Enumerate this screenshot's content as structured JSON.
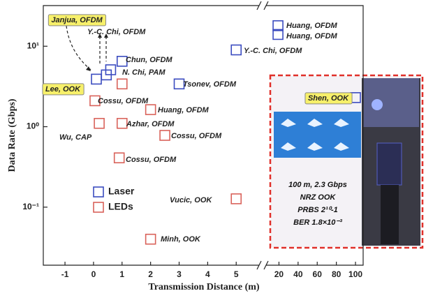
{
  "chart_data": {
    "type": "scatter",
    "x_label": "Transmission Distance (m)",
    "y_label": "Data Rate (Gbps)",
    "xlim": [
      -1.76,
      108
    ],
    "xbreak": [
      5.9,
      8
    ],
    "xticks": [
      -1,
      0,
      1,
      2,
      3,
      4,
      5,
      20,
      40,
      60,
      80,
      100
    ],
    "ylim": [
      0.019,
      32
    ],
    "log_y": true,
    "yticks": [
      {
        "value": 0.1,
        "label": "10⁻¹"
      },
      {
        "value": 1,
        "label": "10⁰"
      },
      {
        "value": 10,
        "label": "10¹"
      }
    ],
    "legend": "lower left",
    "series": [
      {
        "name": "Laser",
        "color": "#3b4cc0",
        "x": [
          0.1,
          0.45,
          0.6,
          1,
          3,
          5,
          19,
          19,
          100
        ],
        "values": [
          3.9,
          4.4,
          5.1,
          6.5,
          3.4,
          9,
          18,
          14,
          2.3
        ],
        "point_labels": [
          "Lee, OOK",
          "Janjua, OFDM",
          "Y.-C. Chi, OFDM",
          "Chun, OFDM",
          "Tsonev, OFDM",
          "Y.-C. Chi, OFDM",
          "Huang, OFDM",
          "Huang, OFDM",
          "Shen, OOK"
        ],
        "highlight": [
          true,
          true,
          false,
          false,
          false,
          false,
          false,
          false,
          true
        ]
      },
      {
        "name": "LEDs",
        "color": "#d9625a",
        "x": [
          0.05,
          1,
          2,
          0.2,
          1,
          2.5,
          0.9,
          5,
          2
        ],
        "values": [
          2.1,
          3.4,
          1.63,
          1.1,
          1.1,
          0.78,
          0.41,
          0.127,
          0.04
        ],
        "point_labels": [
          "Cossu, OFDM",
          "N. Chi, PAM",
          "Huang, OFDM",
          "Wu, CAP",
          "Azhar, OFDM",
          "Cossu, OFDM",
          "Cossu, OFDM",
          "Vucic, OOK",
          "Minh, OOK"
        ],
        "highlight": [
          false,
          false,
          false,
          false,
          false,
          false,
          false,
          false,
          false
        ]
      }
    ],
    "inset_text": [
      "100 m, 2.3 Gbps",
      "NRZ OOK",
      "PRBS 2¹⁰-1",
      "BER 1.8×10⁻³"
    ]
  }
}
